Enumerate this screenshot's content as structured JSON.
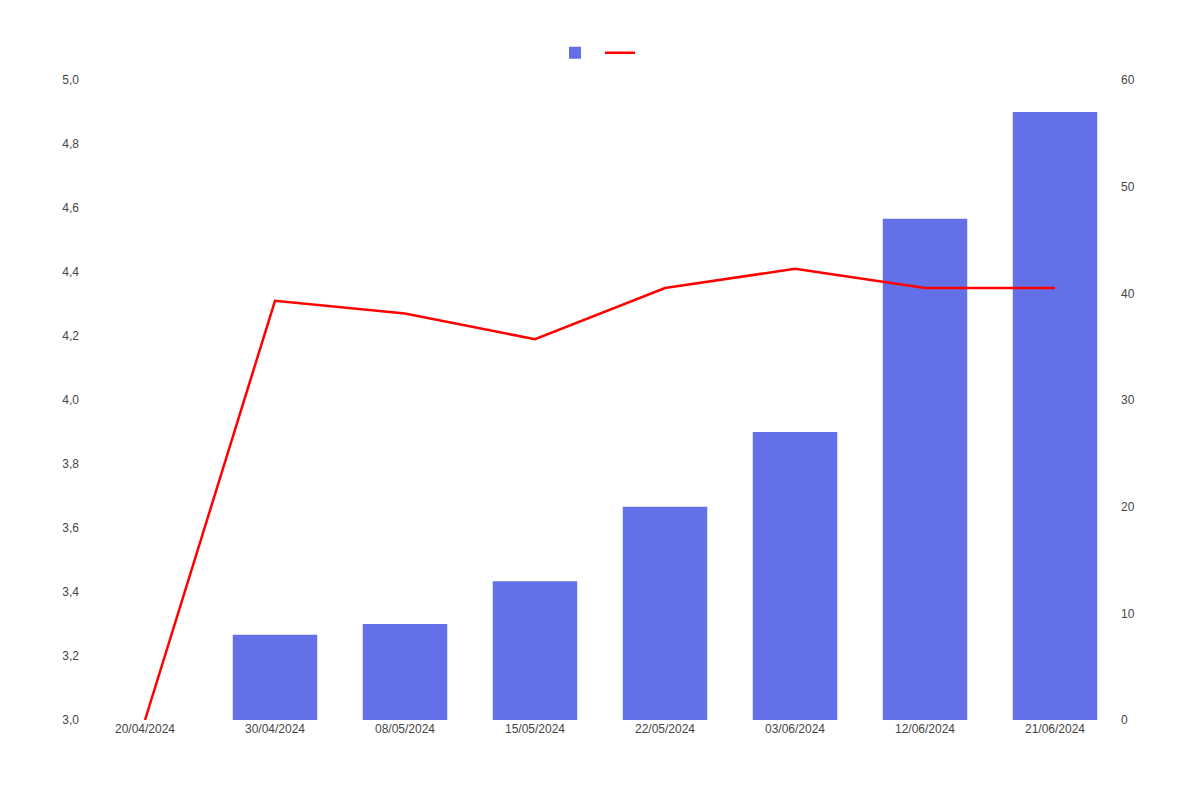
{
  "chart_data": {
    "type": "bar",
    "categories": [
      "20/04/2024",
      "30/04/2024",
      "08/05/2024",
      "15/05/2024",
      "22/05/2024",
      "03/06/2024",
      "12/06/2024",
      "21/06/2024"
    ],
    "series": [
      {
        "type": "line",
        "color": "#ff0000",
        "values": [
          3.0,
          4.31,
          4.27,
          4.19,
          4.35,
          4.41,
          4.35,
          4.35
        ]
      },
      {
        "type": "bar",
        "axis": "y2",
        "color": "#6370e8",
        "values": [
          null,
          8,
          9,
          13,
          20,
          27,
          47,
          57
        ]
      }
    ],
    "ylim": [
      3.0,
      5.0
    ],
    "yticks": [
      {
        "value": 3.0,
        "label": "3,0"
      },
      {
        "value": 3.2,
        "label": "3,2"
      },
      {
        "value": 3.4,
        "label": "3,4"
      },
      {
        "value": 3.6,
        "label": "3,6"
      },
      {
        "value": 3.8,
        "label": "3,8"
      },
      {
        "value": 4.0,
        "label": "4,0"
      },
      {
        "value": 4.2,
        "label": "4,2"
      },
      {
        "value": 4.4,
        "label": "4,4"
      },
      {
        "value": 4.6,
        "label": "4,6"
      },
      {
        "value": 4.8,
        "label": "4,8"
      },
      {
        "value": 5.0,
        "label": "5,0"
      }
    ],
    "y2lim": [
      0,
      60
    ],
    "y2ticks": [
      0,
      10,
      20,
      30,
      40,
      50,
      60
    ],
    "grid": false,
    "legend": "top"
  }
}
